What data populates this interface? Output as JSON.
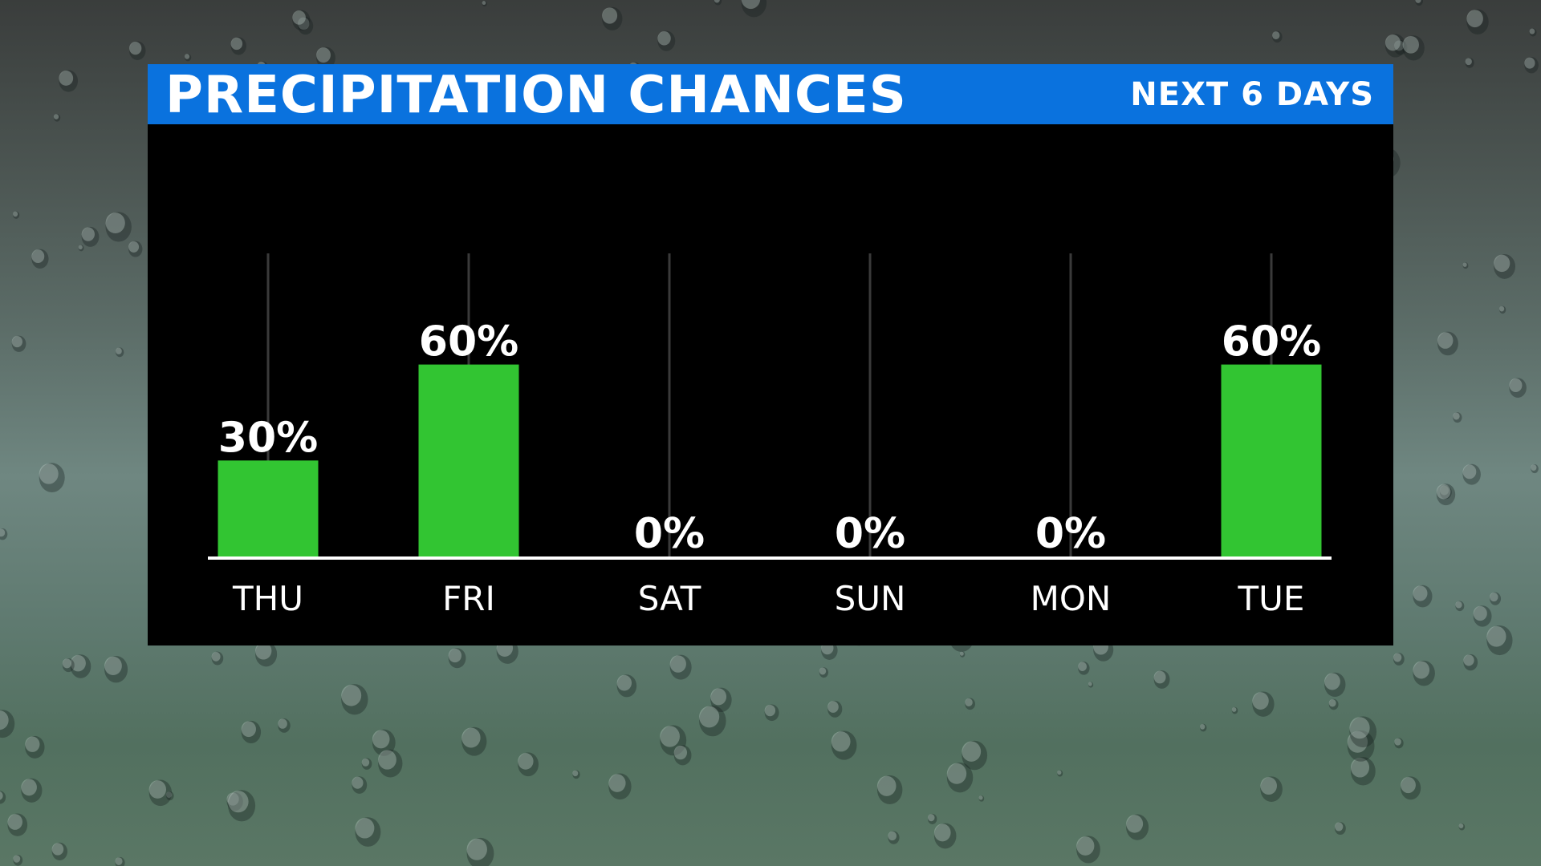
{
  "header": {
    "title": "PRECIPITATION CHANCES",
    "subtitle": "NEXT 6 DAYS"
  },
  "colors": {
    "header_bg": "#0a72de",
    "bar": "#32c532",
    "panel_bg": "#000000",
    "text": "#ffffff"
  },
  "chart_data": {
    "type": "bar",
    "categories": [
      "THU",
      "FRI",
      "SAT",
      "SUN",
      "MON",
      "TUE"
    ],
    "values": [
      30,
      60,
      0,
      0,
      0,
      60
    ],
    "labels": [
      "30%",
      "60%",
      "0%",
      "0%",
      "0%",
      "60%"
    ],
    "ylim": [
      0,
      100
    ],
    "grid": "vertical"
  }
}
